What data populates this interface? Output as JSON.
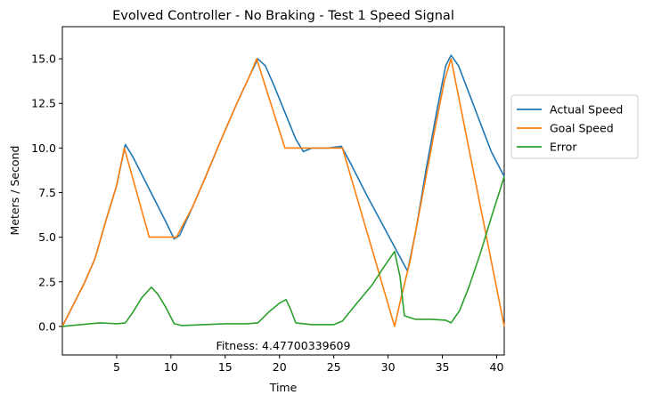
{
  "chart_data": {
    "type": "line",
    "title": "Evolved Controller - No Braking - Test 1  Speed Signal",
    "xlabel": "Time",
    "ylabel": "Meters / Second",
    "xlim": [
      0,
      40.7
    ],
    "ylim": [
      -1.6,
      16.8
    ],
    "xticks": [
      5,
      10,
      15,
      20,
      25,
      30,
      35,
      40
    ],
    "yticks": [
      0.0,
      2.5,
      5.0,
      7.5,
      10.0,
      12.5,
      15.0
    ],
    "grid": false,
    "legend_position": "outside-right",
    "annotation": "Fitness: 4.47700339609",
    "series": [
      {
        "name": "Actual Speed",
        "color": "#1f77b4",
        "points": [
          [
            0,
            0
          ],
          [
            1,
            1.2
          ],
          [
            2,
            2.4
          ],
          [
            3,
            3.8
          ],
          [
            4,
            5.9
          ],
          [
            5,
            7.9
          ],
          [
            5.8,
            10.2
          ],
          [
            6.5,
            9.5
          ],
          [
            7.5,
            8.3
          ],
          [
            8.5,
            7.1
          ],
          [
            9.5,
            5.9
          ],
          [
            10.3,
            4.9
          ],
          [
            10.8,
            5.1
          ],
          [
            12,
            6.7
          ],
          [
            13.2,
            8.4
          ],
          [
            14.5,
            10.3
          ],
          [
            16,
            12.4
          ],
          [
            17.3,
            14.1
          ],
          [
            18,
            15.0
          ],
          [
            18.7,
            14.6
          ],
          [
            19.5,
            13.5
          ],
          [
            20.5,
            12.0
          ],
          [
            21.5,
            10.5
          ],
          [
            22.2,
            9.8
          ],
          [
            23,
            10.0
          ],
          [
            24.5,
            10.0
          ],
          [
            25.7,
            10.1
          ],
          [
            26.5,
            9.2
          ],
          [
            28,
            7.4
          ],
          [
            29.5,
            5.7
          ],
          [
            31,
            4.0
          ],
          [
            31.8,
            3.1
          ],
          [
            32.6,
            5.5
          ],
          [
            33.5,
            8.8
          ],
          [
            34.5,
            12.1
          ],
          [
            35.3,
            14.6
          ],
          [
            35.8,
            15.2
          ],
          [
            36.5,
            14.6
          ],
          [
            37.5,
            13.0
          ],
          [
            38.5,
            11.4
          ],
          [
            39.5,
            9.8
          ],
          [
            40.7,
            8.4
          ]
        ]
      },
      {
        "name": "Goal Speed",
        "color": "#ff7f0e",
        "points": [
          [
            0,
            0
          ],
          [
            1,
            1.2
          ],
          [
            2,
            2.4
          ],
          [
            3,
            3.8
          ],
          [
            4,
            5.9
          ],
          [
            5,
            7.9
          ],
          [
            5.7,
            10.0
          ],
          [
            8,
            5.0
          ],
          [
            10.5,
            5.0
          ],
          [
            12,
            6.7
          ],
          [
            13.2,
            8.4
          ],
          [
            14.5,
            10.3
          ],
          [
            16,
            12.4
          ],
          [
            17.3,
            14.1
          ],
          [
            17.9,
            15.0
          ],
          [
            20.5,
            10.0
          ],
          [
            25.8,
            10.0
          ],
          [
            30.6,
            0.0
          ],
          [
            31.2,
            1.6
          ],
          [
            32,
            3.6
          ],
          [
            33,
            6.8
          ],
          [
            34.2,
            10.7
          ],
          [
            35.2,
            13.8
          ],
          [
            35.8,
            15.0
          ],
          [
            40.7,
            0.0
          ]
        ]
      },
      {
        "name": "Error",
        "color": "#2ca02c",
        "points": [
          [
            0,
            0
          ],
          [
            2.5,
            0.15
          ],
          [
            3.5,
            0.2
          ],
          [
            5,
            0.15
          ],
          [
            5.8,
            0.2
          ],
          [
            6.5,
            0.8
          ],
          [
            7.3,
            1.6
          ],
          [
            8.2,
            2.2
          ],
          [
            8.8,
            1.8
          ],
          [
            9.5,
            1.1
          ],
          [
            10.3,
            0.15
          ],
          [
            11,
            0.05
          ],
          [
            13,
            0.1
          ],
          [
            15,
            0.15
          ],
          [
            17,
            0.15
          ],
          [
            18,
            0.2
          ],
          [
            19,
            0.8
          ],
          [
            20,
            1.3
          ],
          [
            20.6,
            1.5
          ],
          [
            21,
            1.0
          ],
          [
            21.5,
            0.2
          ],
          [
            23,
            0.1
          ],
          [
            25,
            0.1
          ],
          [
            25.8,
            0.3
          ],
          [
            27,
            1.2
          ],
          [
            28.5,
            2.3
          ],
          [
            29.7,
            3.4
          ],
          [
            30.6,
            4.2
          ],
          [
            31.1,
            2.8
          ],
          [
            31.5,
            0.6
          ],
          [
            32.5,
            0.4
          ],
          [
            34,
            0.4
          ],
          [
            35.3,
            0.35
          ],
          [
            35.8,
            0.2
          ],
          [
            36.6,
            0.9
          ],
          [
            37.5,
            2.3
          ],
          [
            38.5,
            4.1
          ],
          [
            39.5,
            6.1
          ],
          [
            40.7,
            8.4
          ]
        ]
      }
    ]
  }
}
